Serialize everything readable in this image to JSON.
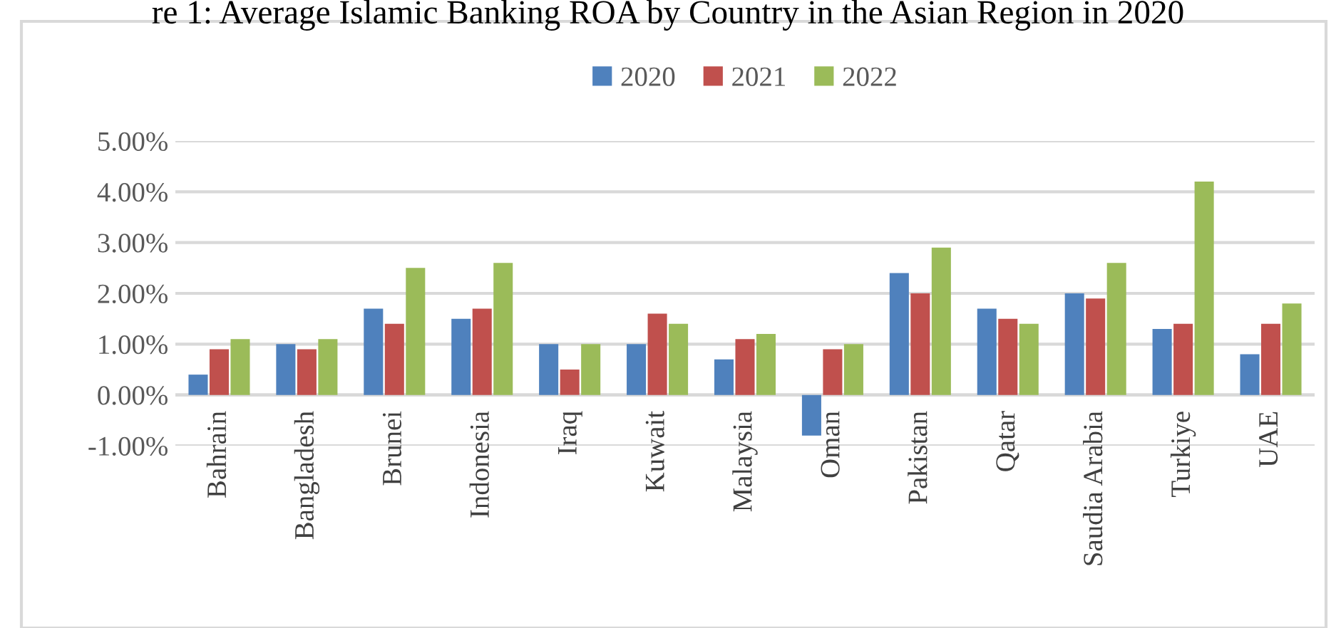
{
  "chart_data": {
    "type": "bar",
    "title": "re 1: Average Islamic Banking ROA by Country in the Asian Region in 2020",
    "categories": [
      "Bahrain",
      "Bangladesh",
      "Brunei",
      "Indonesia",
      "Iraq",
      "Kuwait",
      "Malaysia",
      "Oman",
      "Pakistan",
      "Qatar",
      "Saudia Arabia",
      "Turkiye",
      "UAE"
    ],
    "series": [
      {
        "name": "2020",
        "color": "#4f81bd",
        "values": [
          0.4,
          1.0,
          1.7,
          1.5,
          1.0,
          1.0,
          0.7,
          -0.8,
          2.4,
          1.7,
          2.0,
          1.3,
          0.8
        ]
      },
      {
        "name": "2021",
        "color": "#c0504d",
        "values": [
          0.9,
          0.9,
          1.4,
          1.7,
          0.5,
          1.6,
          1.1,
          0.9,
          2.0,
          1.5,
          1.9,
          1.4,
          1.4
        ]
      },
      {
        "name": "2022",
        "color": "#9bbb59",
        "values": [
          1.1,
          1.1,
          2.5,
          2.6,
          1.0,
          1.4,
          1.2,
          1.0,
          2.9,
          1.4,
          2.6,
          4.2,
          1.8
        ]
      }
    ],
    "ylim": [
      -1,
      5
    ],
    "yticks": [
      {
        "value": -1,
        "label": "-1.00%"
      },
      {
        "value": 0,
        "label": "0.00%"
      },
      {
        "value": 1,
        "label": "1.00%"
      },
      {
        "value": 2,
        "label": "2.00%"
      },
      {
        "value": 3,
        "label": "3.00%"
      },
      {
        "value": 4,
        "label": "4.00%"
      },
      {
        "value": 5,
        "label": "5.00%"
      }
    ],
    "grid": "y",
    "legend": "top"
  }
}
